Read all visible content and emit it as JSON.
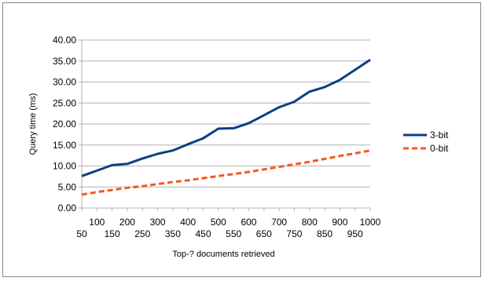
{
  "chart_data": {
    "type": "line",
    "title": "",
    "xlabel": "Top-? documents retrieved",
    "ylabel": "Query time (ms)",
    "x": [
      50,
      100,
      150,
      200,
      250,
      300,
      350,
      400,
      450,
      500,
      550,
      600,
      650,
      700,
      750,
      800,
      850,
      900,
      950,
      1000
    ],
    "x_tick_labels_lower": [
      "50",
      "150",
      "250",
      "350",
      "450",
      "550",
      "650",
      "750",
      "850",
      "950"
    ],
    "x_tick_labels_upper": [
      "100",
      "200",
      "300",
      "400",
      "500",
      "600",
      "700",
      "800",
      "900",
      "1000"
    ],
    "y_ticks": [
      "0.00",
      "5.00",
      "10.00",
      "15.00",
      "20.00",
      "25.00",
      "30.00",
      "35.00",
      "40.00"
    ],
    "ylim": [
      0,
      40
    ],
    "grid": "horizontal",
    "legend_position": "right",
    "series": [
      {
        "name": "3-bit",
        "color": "#0b3f82",
        "style": "solid",
        "values": [
          7.6,
          8.9,
          10.2,
          10.5,
          11.8,
          12.9,
          13.7,
          15.2,
          16.6,
          18.9,
          19.0,
          20.2,
          22.1,
          24.0,
          25.3,
          27.7,
          28.8,
          30.5,
          32.9,
          35.3
        ]
      },
      {
        "name": "0-bit",
        "color": "#f5571f",
        "style": "dashed",
        "values": [
          3.2,
          3.8,
          4.3,
          4.8,
          5.2,
          5.7,
          6.2,
          6.6,
          7.1,
          7.6,
          8.1,
          8.6,
          9.2,
          9.8,
          10.4,
          11.0,
          11.7,
          12.4,
          13.0,
          13.7
        ]
      }
    ]
  }
}
